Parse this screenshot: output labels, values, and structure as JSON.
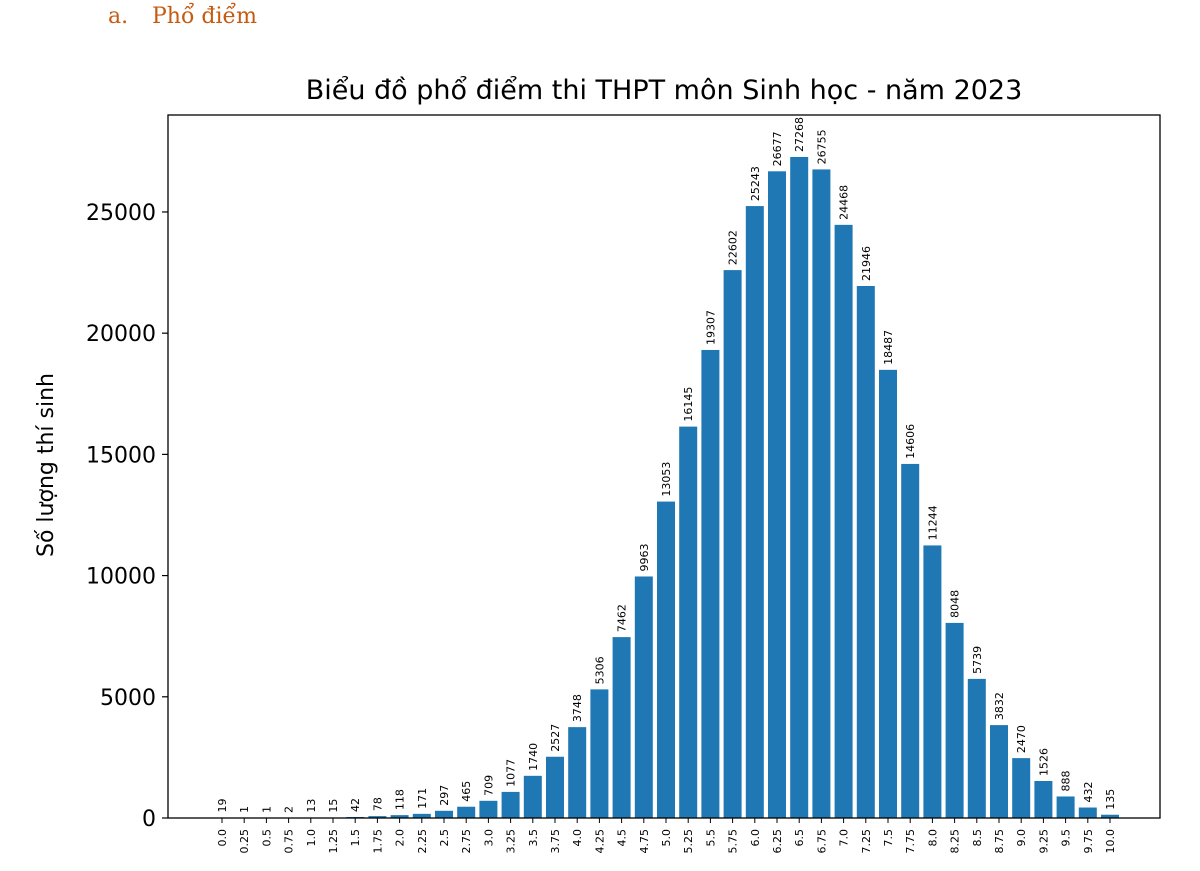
{
  "heading": {
    "number": "a.",
    "text": "Phổ điểm"
  },
  "chart_data": {
    "type": "bar",
    "title": "Biểu đồ phổ điểm thi THPT môn Sinh học - năm 2023",
    "xlabel": "",
    "ylabel": "Số lượng thí sinh",
    "categories": [
      "0.0",
      "0.25",
      "0.5",
      "0.75",
      "1.0",
      "1.25",
      "1.5",
      "1.75",
      "2.0",
      "2.25",
      "2.5",
      "2.75",
      "3.0",
      "3.25",
      "3.5",
      "3.75",
      "4.0",
      "4.25",
      "4.5",
      "4.75",
      "5.0",
      "5.25",
      "5.5",
      "5.75",
      "6.0",
      "6.25",
      "6.5",
      "6.75",
      "7.0",
      "7.25",
      "7.5",
      "7.75",
      "8.0",
      "8.25",
      "8.5",
      "8.75",
      "9.0",
      "9.25",
      "9.5",
      "9.75",
      "10.0"
    ],
    "values": [
      19,
      1,
      1,
      2,
      13,
      15,
      42,
      78,
      118,
      171,
      297,
      465,
      709,
      1077,
      1740,
      2527,
      3748,
      5306,
      7462,
      9963,
      13053,
      16145,
      19307,
      22602,
      25243,
      26677,
      27268,
      26755,
      24468,
      21946,
      18487,
      14606,
      11244,
      8048,
      5739,
      3832,
      2470,
      1526,
      888,
      432,
      135
    ],
    "yticks": [
      0,
      5000,
      10000,
      15000,
      20000,
      25000
    ],
    "ylim": [
      0,
      29000
    ],
    "grid": false,
    "bar_color": "#1f77b4"
  }
}
